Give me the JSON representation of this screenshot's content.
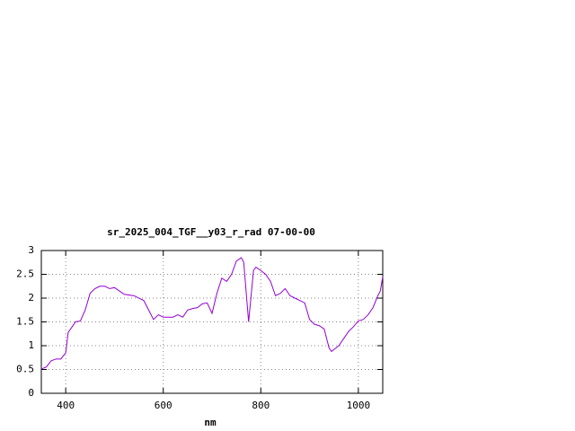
{
  "chart_data": {
    "type": "line",
    "title": "sr_2025_004_TGF__y03_r_rad 07-00-00",
    "x_label": "nm",
    "x": [
      350,
      360,
      370,
      380,
      390,
      400,
      405,
      410,
      420,
      430,
      440,
      450,
      460,
      470,
      480,
      490,
      500,
      510,
      520,
      540,
      560,
      570,
      580,
      590,
      600,
      620,
      630,
      640,
      650,
      660,
      670,
      680,
      690,
      700,
      710,
      720,
      730,
      740,
      750,
      760,
      765,
      775,
      785,
      790,
      800,
      810,
      820,
      830,
      840,
      850,
      860,
      870,
      880,
      890,
      900,
      910,
      920,
      930,
      940,
      945,
      950,
      960,
      970,
      980,
      990,
      1000,
      1010,
      1020,
      1030,
      1040,
      1045,
      1050
    ],
    "series": [
      {
        "color": "#9400d3",
        "values": [
          0.51,
          0.55,
          0.68,
          0.72,
          0.72,
          0.85,
          1.28,
          1.35,
          1.5,
          1.52,
          1.75,
          2.1,
          2.2,
          2.25,
          2.25,
          2.2,
          2.22,
          2.15,
          2.08,
          2.05,
          1.95,
          1.75,
          1.55,
          1.65,
          1.6,
          1.6,
          1.65,
          1.6,
          1.75,
          1.78,
          1.8,
          1.88,
          1.9,
          1.68,
          2.1,
          2.42,
          2.35,
          2.5,
          2.78,
          2.85,
          2.75,
          1.5,
          2.58,
          2.65,
          2.58,
          2.5,
          2.35,
          2.05,
          2.1,
          2.2,
          2.05,
          2.0,
          1.95,
          1.9,
          1.55,
          1.45,
          1.42,
          1.35,
          0.95,
          0.88,
          0.92,
          1.0,
          1.15,
          1.3,
          1.4,
          1.52,
          1.55,
          1.65,
          1.8,
          2.05,
          2.15,
          2.45
        ]
      }
    ],
    "xlim": [
      350,
      1050
    ],
    "xticks": [
      400,
      600,
      800,
      1000
    ],
    "ylim": [
      0,
      3
    ],
    "yticks": [
      0,
      0.5,
      1,
      1.5,
      2,
      2.5,
      3
    ],
    "grid": true
  }
}
